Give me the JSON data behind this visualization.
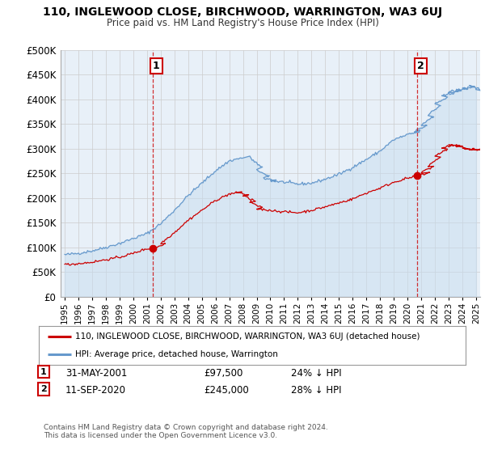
{
  "title": "110, INGLEWOOD CLOSE, BIRCHWOOD, WARRINGTON, WA3 6UJ",
  "subtitle": "Price paid vs. HM Land Registry's House Price Index (HPI)",
  "legend_house": "110, INGLEWOOD CLOSE, BIRCHWOOD, WARRINGTON, WA3 6UJ (detached house)",
  "legend_hpi": "HPI: Average price, detached house, Warrington",
  "annotation1_date": "31-MAY-2001",
  "annotation1_price": "£97,500",
  "annotation1_hpi": "24% ↓ HPI",
  "annotation2_date": "11-SEP-2020",
  "annotation2_price": "£245,000",
  "annotation2_hpi": "28% ↓ HPI",
  "footnote": "Contains HM Land Registry data © Crown copyright and database right 2024.\nThis data is licensed under the Open Government Licence v3.0.",
  "house_color": "#cc0000",
  "hpi_color": "#6699cc",
  "hpi_fill_color": "#ddeeff",
  "background_color": "#ffffff",
  "grid_color": "#cccccc",
  "sale1_x": 2001.42,
  "sale1_y": 97500,
  "sale2_x": 2020.71,
  "sale2_y": 245000,
  "ylim": [
    0,
    500000
  ],
  "yticks": [
    0,
    50000,
    100000,
    150000,
    200000,
    250000,
    300000,
    350000,
    400000,
    450000,
    500000
  ],
  "xmin": 1995.0,
  "xmax": 2025.3
}
